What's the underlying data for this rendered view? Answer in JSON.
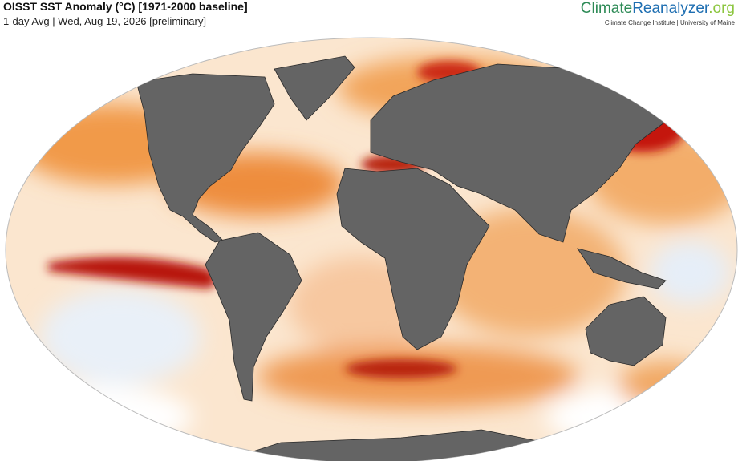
{
  "header": {
    "title": "OISST SST Anomaly (°C) [1971-2000 baseline]",
    "subtitle": "1-day Avg | Wed, Aug 19, 2026 [preliminary]"
  },
  "logo": {
    "name_parts": [
      "Climate",
      "Reanalyzer",
      ".org"
    ],
    "affiliation": "Climate Change Institute | University of Maine"
  }
}
